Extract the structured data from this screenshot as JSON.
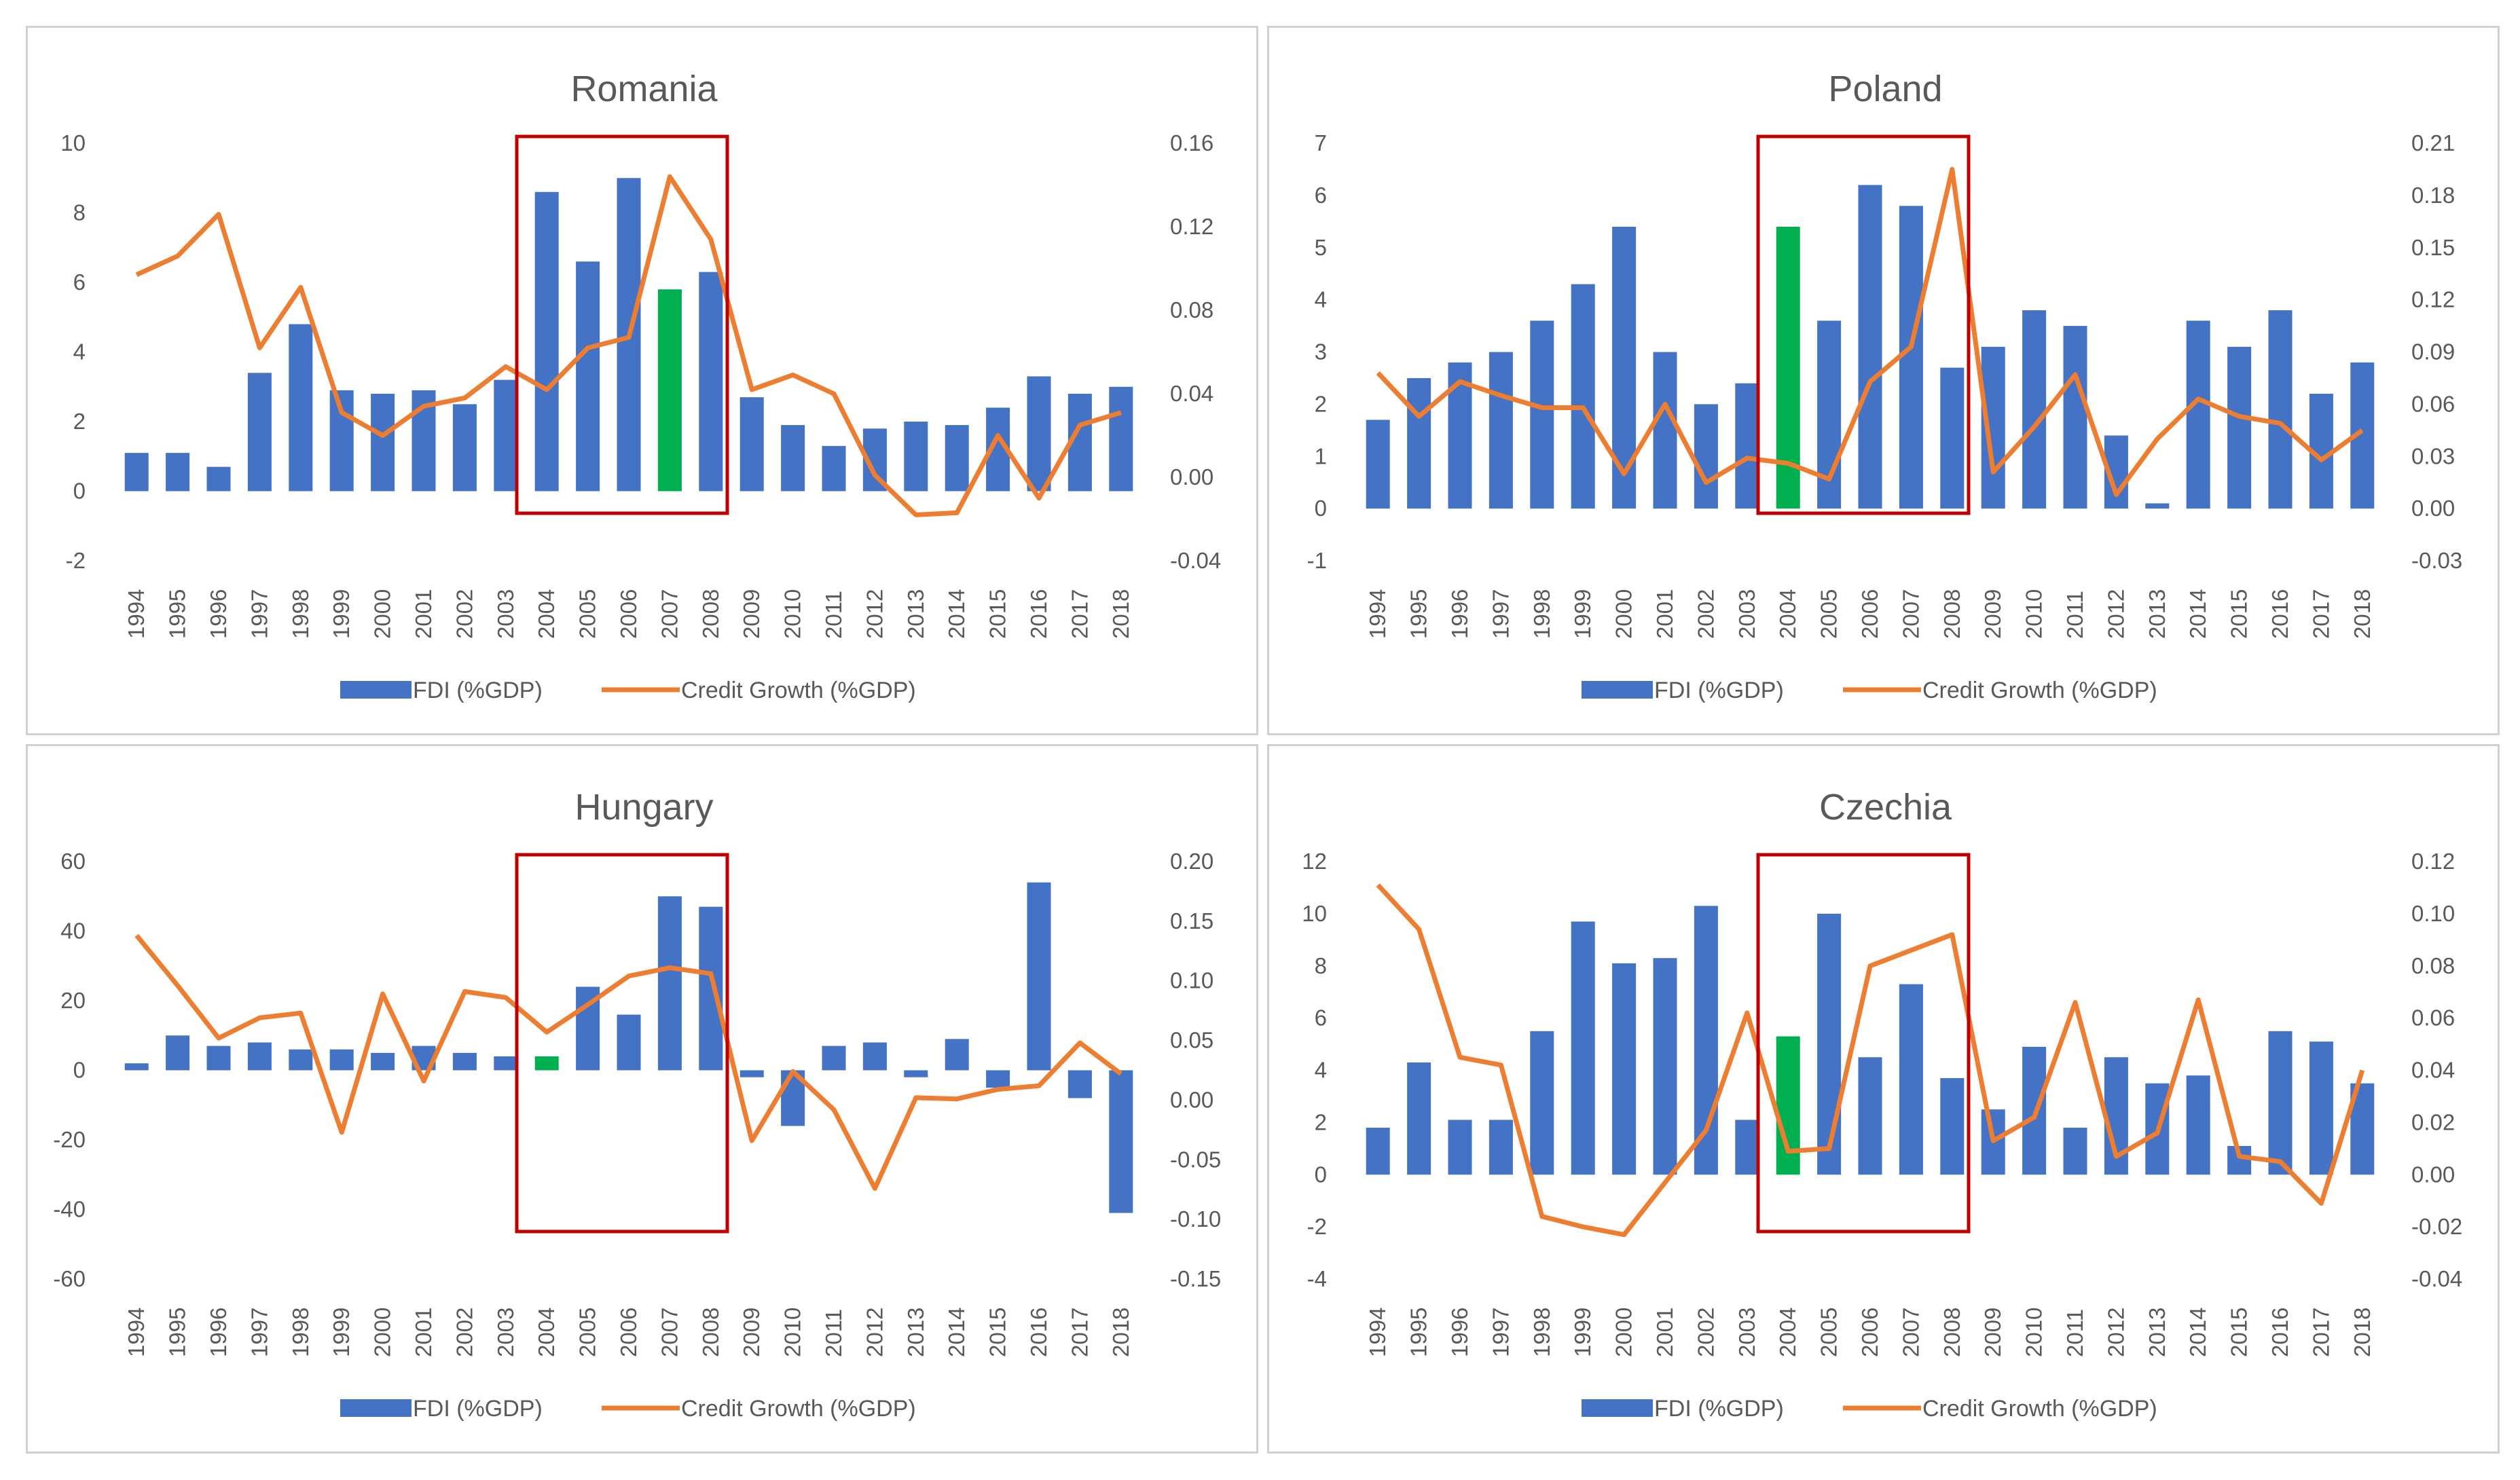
{
  "colors": {
    "fdi_bar": "#4472c4",
    "highlight_bar": "#00b050",
    "credit_line": "#ed7d31",
    "highlight_box": "#c00000"
  },
  "legend": {
    "fdi": "FDI (%GDP)",
    "credit": "Credit Growth (%GDP)"
  },
  "chart_data": [
    {
      "type": "bar+line",
      "title": "Romania",
      "categories": [
        "1994",
        "1995",
        "1996",
        "1997",
        "1998",
        "1999",
        "2000",
        "2001",
        "2002",
        "2003",
        "2004",
        "2005",
        "2006",
        "2007",
        "2008",
        "2009",
        "2010",
        "2011",
        "2012",
        "2013",
        "2014",
        "2015",
        "2016",
        "2017",
        "2018"
      ],
      "left_axis": {
        "ticks": [
          "10",
          "8",
          "6",
          "4",
          "2",
          "0",
          "-2"
        ],
        "min": -2,
        "max": 10
      },
      "right_axis": {
        "ticks": [
          "0.16",
          "0.12",
          "0.08",
          "0.04",
          "0.00",
          "-0.04"
        ],
        "min": -0.04,
        "max": 0.16
      },
      "series": [
        {
          "name": "FDI (%GDP)",
          "axis": "left",
          "type": "bar",
          "values": [
            1.1,
            1.1,
            0.7,
            3.4,
            4.8,
            2.9,
            2.8,
            2.9,
            2.5,
            3.2,
            8.6,
            6.6,
            9.0,
            5.8,
            6.3,
            2.7,
            1.9,
            1.3,
            1.8,
            2.0,
            1.9,
            2.4,
            3.3,
            2.8,
            3.0
          ]
        },
        {
          "name": "Credit Growth (%GDP)",
          "axis": "right",
          "type": "line",
          "values": [
            0.097,
            0.106,
            0.126,
            0.062,
            0.091,
            0.031,
            0.02,
            0.034,
            0.038,
            0.053,
            0.042,
            0.062,
            0.067,
            0.144,
            0.114,
            0.042,
            0.049,
            0.04,
            0.001,
            -0.018,
            -0.017,
            0.02,
            -0.01,
            0.025,
            0.031
          ]
        }
      ],
      "highlight_index": 13,
      "highlight_range": [
        "2004",
        "2008"
      ]
    },
    {
      "type": "bar+line",
      "title": "Poland",
      "categories": [
        "1994",
        "1995",
        "1996",
        "1997",
        "1998",
        "1999",
        "2000",
        "2001",
        "2002",
        "2003",
        "2004",
        "2005",
        "2006",
        "2007",
        "2008",
        "2009",
        "2010",
        "2011",
        "2012",
        "2013",
        "2014",
        "2015",
        "2016",
        "2017",
        "2018"
      ],
      "left_axis": {
        "ticks": [
          "7",
          "6",
          "5",
          "4",
          "3",
          "2",
          "1",
          "0",
          "-1"
        ],
        "min": -1,
        "max": 7
      },
      "right_axis": {
        "ticks": [
          "0.21",
          "0.18",
          "0.15",
          "0.12",
          "0.09",
          "0.06",
          "0.03",
          "0.00",
          "-0.03"
        ],
        "min": -0.03,
        "max": 0.21
      },
      "series": [
        {
          "name": "FDI (%GDP)",
          "axis": "left",
          "type": "bar",
          "values": [
            1.7,
            2.5,
            2.8,
            3.0,
            3.6,
            4.3,
            5.4,
            3.0,
            2.0,
            2.4,
            5.4,
            3.6,
            6.2,
            5.8,
            2.7,
            3.1,
            3.8,
            3.5,
            1.4,
            0.1,
            3.6,
            3.1,
            3.8,
            2.2,
            2.8
          ]
        },
        {
          "name": "Credit Growth (%GDP)",
          "axis": "right",
          "type": "line",
          "values": [
            0.078,
            0.053,
            0.073,
            0.065,
            0.058,
            0.058,
            0.02,
            0.06,
            0.015,
            0.029,
            0.026,
            0.017,
            0.073,
            0.093,
            0.195,
            0.021,
            0.047,
            0.077,
            0.008,
            0.04,
            0.063,
            0.053,
            0.049,
            0.028,
            0.045
          ]
        }
      ],
      "highlight_index": 10,
      "highlight_range": [
        "2004",
        "2008"
      ]
    },
    {
      "type": "bar+line",
      "title": "Hungary",
      "categories": [
        "1994",
        "1995",
        "1996",
        "1997",
        "1998",
        "1999",
        "2000",
        "2001",
        "2002",
        "2003",
        "2004",
        "2005",
        "2006",
        "2007",
        "2008",
        "2009",
        "2010",
        "2011",
        "2012",
        "2013",
        "2014",
        "2015",
        "2016",
        "2017",
        "2018"
      ],
      "left_axis": {
        "ticks": [
          "60",
          "40",
          "20",
          "0",
          "-20",
          "-40",
          "-60"
        ],
        "min": -60,
        "max": 60
      },
      "right_axis": {
        "ticks": [
          "0.20",
          "0.15",
          "0.10",
          "0.05",
          "0.00",
          "-0.05",
          "-0.10",
          "-0.15"
        ],
        "min": -0.15,
        "max": 0.2
      },
      "series": [
        {
          "name": "FDI (%GDP)",
          "axis": "left",
          "type": "bar",
          "values": [
            2,
            10,
            7,
            8,
            6,
            6,
            5,
            7,
            5,
            4,
            4,
            24,
            16,
            50,
            47,
            -2,
            -16,
            7,
            8,
            -2,
            9,
            -5,
            54,
            -8,
            -41
          ]
        },
        {
          "name": "Credit Growth (%GDP)",
          "axis": "right",
          "type": "line",
          "values": [
            0.138,
            0.096,
            0.052,
            0.069,
            0.073,
            -0.027,
            0.089,
            0.016,
            0.091,
            0.086,
            0.057,
            0.08,
            0.104,
            0.111,
            0.106,
            -0.034,
            0.024,
            -0.008,
            -0.074,
            0.002,
            0.001,
            0.009,
            0.012,
            0.048,
            0.022
          ]
        }
      ],
      "highlight_index": 10,
      "highlight_range": [
        "2004",
        "2008"
      ]
    },
    {
      "type": "bar+line",
      "title": "Czechia",
      "categories": [
        "1994",
        "1995",
        "1996",
        "1997",
        "1998",
        "1999",
        "2000",
        "2001",
        "2002",
        "2003",
        "2004",
        "2005",
        "2006",
        "2007",
        "2008",
        "2009",
        "2010",
        "2011",
        "2012",
        "2013",
        "2014",
        "2015",
        "2016",
        "2017",
        "2018"
      ],
      "left_axis": {
        "ticks": [
          "12",
          "10",
          "8",
          "6",
          "4",
          "2",
          "0",
          "-2",
          "-4"
        ],
        "min": -4,
        "max": 12
      },
      "right_axis": {
        "ticks": [
          "0.12",
          "0.10",
          "0.08",
          "0.06",
          "0.04",
          "0.02",
          "0.00",
          "-0.02",
          "-0.04"
        ],
        "min": -0.04,
        "max": 0.12
      },
      "series": [
        {
          "name": "FDI (%GDP)",
          "axis": "left",
          "type": "bar",
          "values": [
            1.8,
            4.3,
            2.1,
            2.1,
            5.5,
            9.7,
            8.1,
            8.3,
            10.3,
            2.1,
            5.3,
            10.0,
            4.5,
            7.3,
            3.7,
            2.5,
            4.9,
            1.8,
            4.5,
            3.5,
            3.8,
            1.1,
            5.5,
            5.1,
            3.5
          ]
        },
        {
          "name": "Credit Growth (%GDP)",
          "axis": "right",
          "type": "line",
          "values": [
            0.111,
            0.094,
            0.045,
            0.042,
            -0.016,
            -0.02,
            -0.023,
            -0.003,
            0.017,
            0.062,
            0.009,
            0.01,
            0.08,
            0.086,
            0.092,
            0.013,
            0.022,
            0.066,
            0.007,
            0.016,
            0.067,
            0.007,
            0.005,
            -0.011,
            0.04
          ]
        }
      ],
      "highlight_index": 10,
      "highlight_range": [
        "2004",
        "2008"
      ]
    }
  ]
}
